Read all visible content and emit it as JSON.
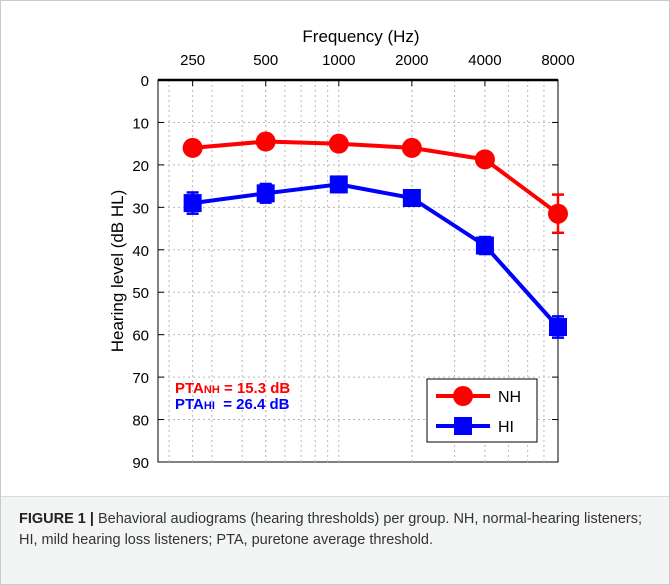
{
  "chart_data": {
    "type": "line",
    "title": "Frequency (Hz)",
    "xlabel": "Frequency (Hz)",
    "ylabel": "Hearing level (dB HL)",
    "x_scale": "log",
    "y_inverted": true,
    "grid": true,
    "categories": [
      "250",
      "500",
      "1000",
      "2000",
      "4000",
      "8000"
    ],
    "x": [
      250,
      500,
      1000,
      2000,
      4000,
      8000
    ],
    "xlim": [
      180,
      8000
    ],
    "ylim": [
      0,
      90
    ],
    "y_ticks": [
      0,
      10,
      20,
      30,
      40,
      50,
      60,
      70,
      80,
      90
    ],
    "series": [
      {
        "name": "NH",
        "color": "#ff0000",
        "marker": "circle",
        "values": [
          16,
          14.5,
          15,
          16,
          18.7,
          31.5
        ],
        "error": [
          0.8,
          0.8,
          0.8,
          0.8,
          0.9,
          4.5
        ]
      },
      {
        "name": "HI",
        "color": "#0000ff",
        "marker": "square",
        "values": [
          29,
          26.7,
          24.6,
          27.8,
          39,
          58.2
        ],
        "error": [
          2.5,
          2.2,
          1.8,
          1.8,
          2,
          2.5
        ]
      }
    ],
    "legend_position": "bottom-right",
    "annotations": {
      "pta_nh": {
        "prefix": "PTA",
        "sub": "NH",
        "suffix": " = 15.3 dB",
        "color": "#ff0000"
      },
      "pta_hi": {
        "prefix": "PTA",
        "sub": "HI",
        "suffix": "  = 26.4 dB",
        "color": "#0000ff"
      }
    }
  },
  "caption": {
    "label": "FIGURE 1 |",
    "text": " Behavioral audiograms (hearing thresholds) per group. NH, normal-hearing listeners; HI, mild hearing loss listeners; PTA, puretone average threshold."
  }
}
